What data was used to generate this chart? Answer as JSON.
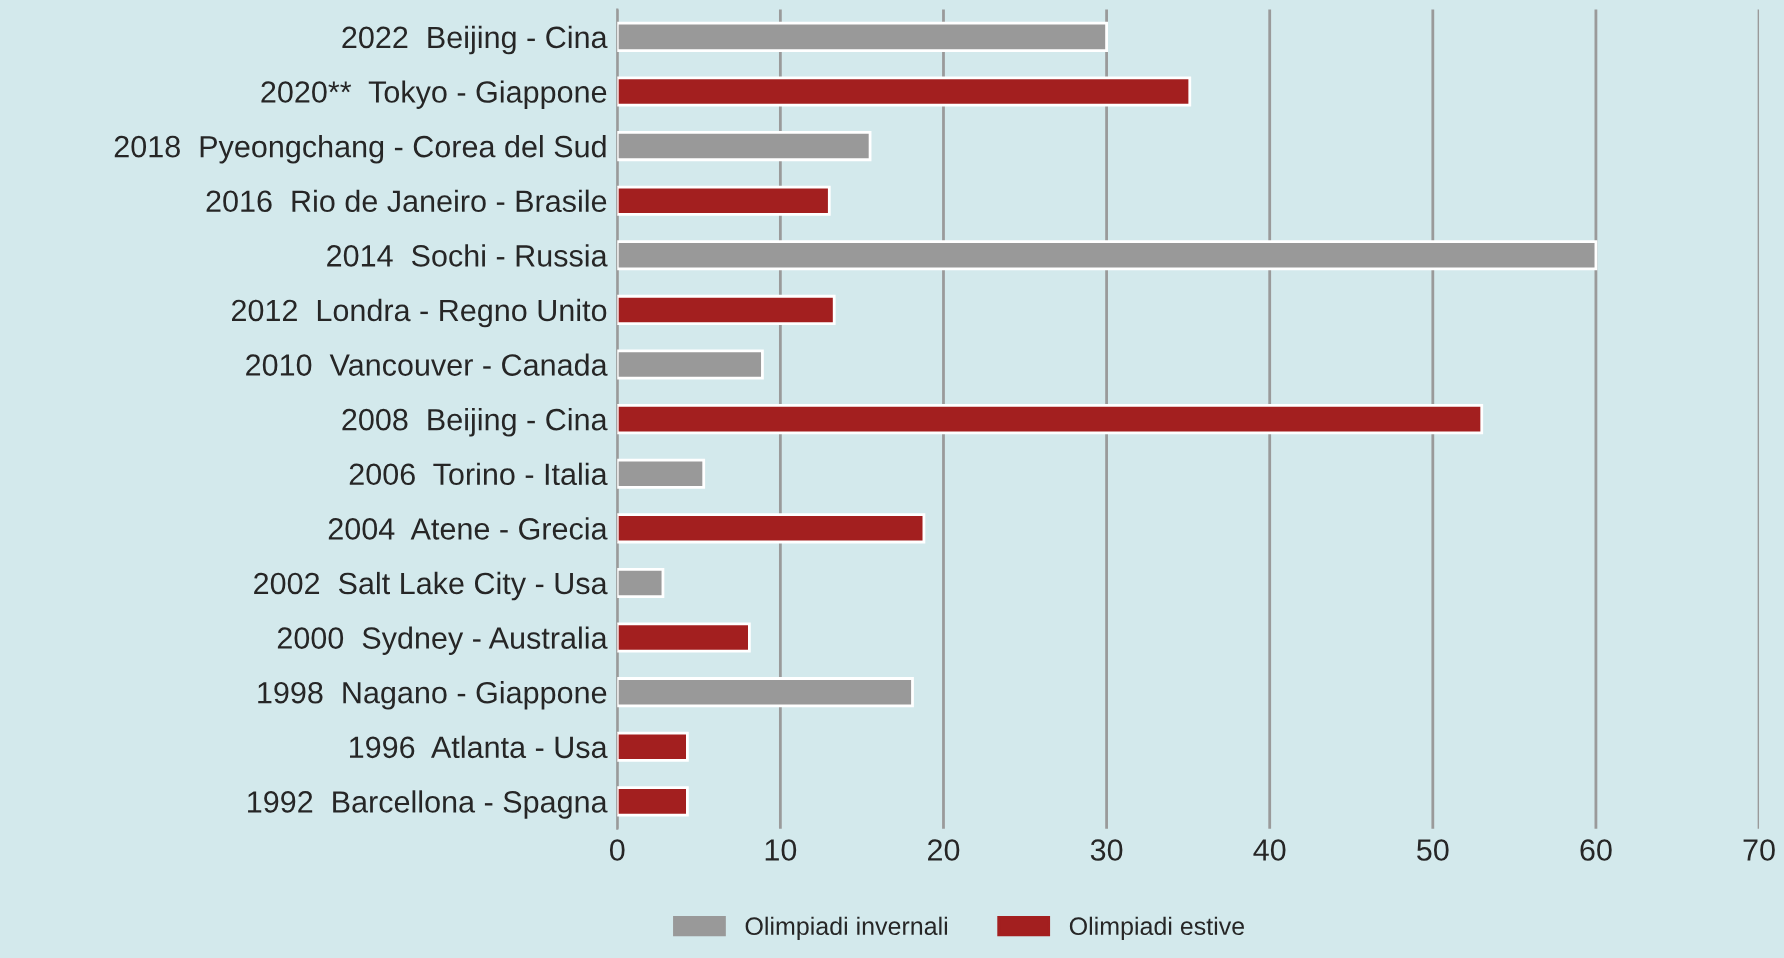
{
  "chart_data": {
    "type": "bar",
    "orientation": "horizontal",
    "categories": [
      "2022  Beijing - Cina",
      "2020**  Tokyo - Giappone",
      "2018  Pyeongchang - Corea del Sud",
      "2016  Rio de Janeiro - Brasile",
      "2014  Sochi - Russia",
      "2012  Londra - Regno Unito",
      "2010  Vancouver - Canada",
      "2008  Beijing - Cina",
      "2006  Torino - Italia",
      "2004  Atene - Grecia",
      "2002  Salt Lake City - Usa",
      "2000  Sydney - Australia",
      "1998  Nagano - Giappone",
      "1996  Atlanta - Usa",
      "1992  Barcellona - Spagna"
    ],
    "series": [
      {
        "name": "Olimpiadi invernali",
        "color": "#999999",
        "values": [
          30,
          null,
          15.5,
          null,
          60,
          null,
          8.9,
          null,
          5.3,
          null,
          2.8,
          null,
          18.1,
          null,
          null
        ]
      },
      {
        "name": "Olimpiadi estive",
        "color": "#a31f1f",
        "values": [
          null,
          35.1,
          null,
          13,
          null,
          13.3,
          null,
          53,
          null,
          18.8,
          null,
          8.1,
          null,
          4.3,
          4.3
        ]
      }
    ],
    "xlim": [
      0,
      70
    ],
    "xticks": [
      0,
      10,
      20,
      30,
      40,
      50,
      60,
      70
    ],
    "grid": "x",
    "legend": "bottom"
  }
}
